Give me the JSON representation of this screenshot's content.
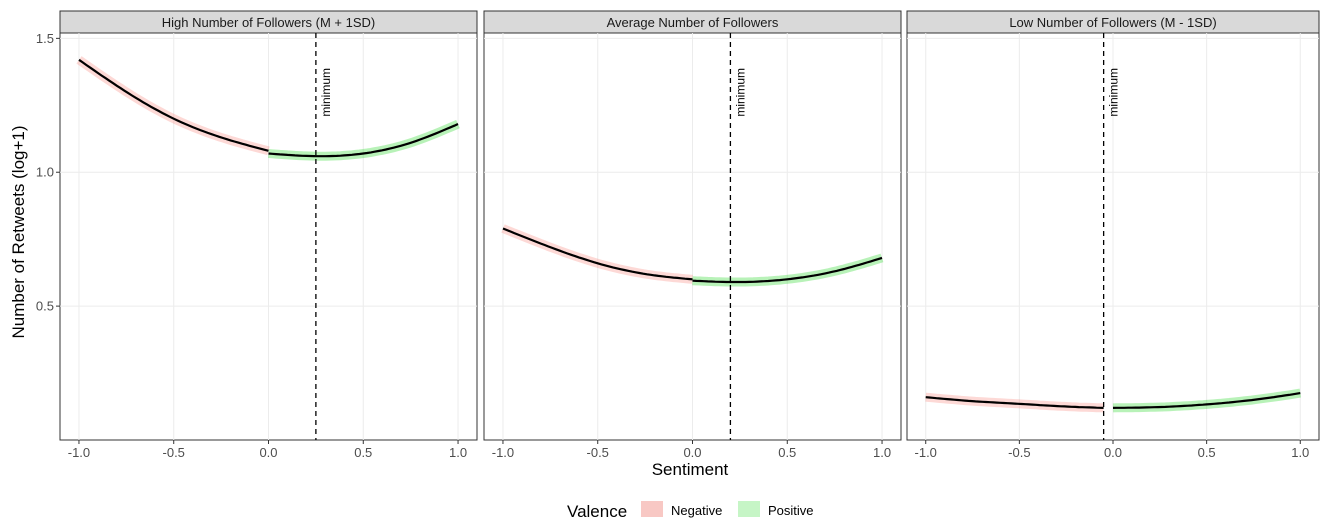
{
  "chart_data": {
    "type": "line",
    "facets": [
      {
        "title": "High Number of Followers (M + 1SD)",
        "minimum_x": 0.25,
        "annotation": "minimum",
        "negative": {
          "x": [
            -1.0,
            -0.75,
            -0.5,
            -0.25,
            0.0
          ],
          "y": [
            1.42,
            1.3,
            1.2,
            1.13,
            1.08
          ]
        },
        "positive": {
          "x": [
            0.0,
            0.25,
            0.5,
            0.75,
            1.0
          ],
          "y": [
            1.07,
            1.06,
            1.07,
            1.11,
            1.18
          ]
        }
      },
      {
        "title": "Average Number of Followers",
        "minimum_x": 0.2,
        "annotation": "minimum",
        "negative": {
          "x": [
            -1.0,
            -0.75,
            -0.5,
            -0.25,
            0.0
          ],
          "y": [
            0.79,
            0.72,
            0.66,
            0.62,
            0.6
          ]
        },
        "positive": {
          "x": [
            0.0,
            0.2,
            0.5,
            0.75,
            1.0
          ],
          "y": [
            0.595,
            0.59,
            0.6,
            0.63,
            0.68
          ]
        }
      },
      {
        "title": "Low Number of Followers (M - 1SD)",
        "minimum_x": -0.05,
        "annotation": "minimum",
        "negative": {
          "x": [
            -1.0,
            -0.75,
            -0.5,
            -0.25,
            -0.05
          ],
          "y": [
            0.16,
            0.145,
            0.135,
            0.125,
            0.12
          ]
        },
        "positive": {
          "x": [
            0.0,
            0.25,
            0.5,
            0.75,
            1.0
          ],
          "y": [
            0.12,
            0.123,
            0.133,
            0.15,
            0.175
          ]
        }
      }
    ],
    "x_ticks": [
      -1.0,
      -0.5,
      0.0,
      0.5,
      1.0
    ],
    "x_tick_labels": [
      "-1.0",
      "-0.5",
      "0.0",
      "0.5",
      "1.0"
    ],
    "y_ticks": [
      0.5,
      1.0,
      1.5
    ],
    "y_tick_labels": [
      "0.5",
      "1.0",
      "1.5"
    ],
    "xlim": [
      -1.1,
      1.1
    ],
    "ylim": [
      0.0,
      1.52
    ],
    "xlabel": "Sentiment",
    "ylabel": "Number of Retweets (log+1)",
    "legend": {
      "title": "Valence",
      "placement": "bottom",
      "entries": [
        {
          "label": "Negative",
          "color": "#f8c8c4"
        },
        {
          "label": "Positive",
          "color": "#c6f5c6"
        }
      ]
    },
    "colors": {
      "line": "#000000",
      "negative_band": "#f8766d",
      "positive_band": "#00d000",
      "strip_fill": "#d9d9d9",
      "grid": "#ffffff"
    }
  }
}
